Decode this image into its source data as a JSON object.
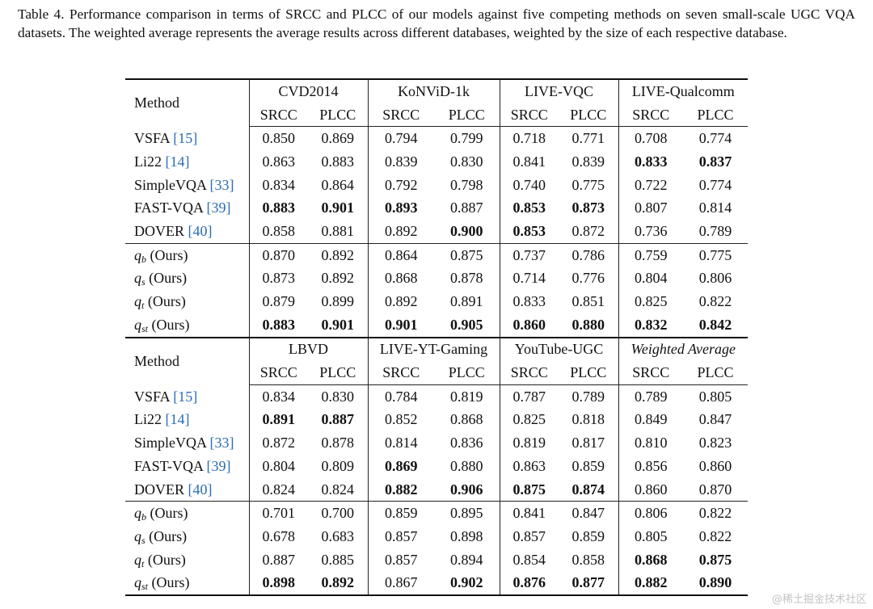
{
  "caption": "Table 4. Performance comparison in terms of SRCC and PLCC of our models against five competing methods on seven small-scale UGC VQA datasets. The weighted average represents the average results across different databases, weighted by the size of each respective database.",
  "metrics": [
    "SRCC",
    "PLCC"
  ],
  "blocks": [
    {
      "method_header": "Method",
      "datasets": [
        "CVD2014",
        "KoNViD-1k",
        "LIVE-VQC",
        "LIVE-Qualcomm"
      ],
      "italic_datasets": [],
      "groups": [
        [
          {
            "method": "VSFA",
            "ref": "[15]",
            "values": [
              "0.850",
              "0.869",
              "0.794",
              "0.799",
              "0.718",
              "0.771",
              "0.708",
              "0.774"
            ],
            "bold": []
          },
          {
            "method": "Li22",
            "ref": "[14]",
            "values": [
              "0.863",
              "0.883",
              "0.839",
              "0.830",
              "0.841",
              "0.839",
              "0.833",
              "0.837"
            ],
            "bold": [
              6,
              7
            ]
          },
          {
            "method": "SimpleVQA",
            "ref": "[33]",
            "values": [
              "0.834",
              "0.864",
              "0.792",
              "0.798",
              "0.740",
              "0.775",
              "0.722",
              "0.774"
            ],
            "bold": []
          },
          {
            "method": "FAST-VQA",
            "ref": "[39]",
            "values": [
              "0.883",
              "0.901",
              "0.893",
              "0.887",
              "0.853",
              "0.873",
              "0.807",
              "0.814"
            ],
            "bold": [
              0,
              1,
              2,
              4,
              5
            ]
          },
          {
            "method": "DOVER",
            "ref": "[40]",
            "values": [
              "0.858",
              "0.881",
              "0.892",
              "0.900",
              "0.853",
              "0.872",
              "0.736",
              "0.789"
            ],
            "bold": [
              3,
              4
            ]
          }
        ],
        [
          {
            "symbol": "q",
            "subscript": "b",
            "note": "(Ours)",
            "values": [
              "0.870",
              "0.892",
              "0.864",
              "0.875",
              "0.737",
              "0.786",
              "0.759",
              "0.775"
            ],
            "bold": []
          },
          {
            "symbol": "q",
            "subscript": "s",
            "note": "(Ours)",
            "values": [
              "0.873",
              "0.892",
              "0.868",
              "0.878",
              "0.714",
              "0.776",
              "0.804",
              "0.806"
            ],
            "bold": []
          },
          {
            "symbol": "q",
            "subscript": "t",
            "note": "(Ours)",
            "values": [
              "0.879",
              "0.899",
              "0.892",
              "0.891",
              "0.833",
              "0.851",
              "0.825",
              "0.822"
            ],
            "bold": []
          },
          {
            "symbol": "q",
            "subscript": "st",
            "note": "(Ours)",
            "values": [
              "0.883",
              "0.901",
              "0.901",
              "0.905",
              "0.860",
              "0.880",
              "0.832",
              "0.842"
            ],
            "bold": [
              0,
              1,
              2,
              3,
              4,
              5,
              6,
              7
            ]
          }
        ]
      ]
    },
    {
      "method_header": "Method",
      "datasets": [
        "LBVD",
        "LIVE-YT-Gaming",
        "YouTube-UGC",
        "Weighted Average"
      ],
      "italic_datasets": [
        3
      ],
      "groups": [
        [
          {
            "method": "VSFA",
            "ref": "[15]",
            "values": [
              "0.834",
              "0.830",
              "0.784",
              "0.819",
              "0.787",
              "0.789",
              "0.789",
              "0.805"
            ],
            "bold": []
          },
          {
            "method": "Li22",
            "ref": "[14]",
            "values": [
              "0.891",
              "0.887",
              "0.852",
              "0.868",
              "0.825",
              "0.818",
              "0.849",
              "0.847"
            ],
            "bold": [
              0,
              1
            ]
          },
          {
            "method": "SimpleVQA",
            "ref": "[33]",
            "values": [
              "0.872",
              "0.878",
              "0.814",
              "0.836",
              "0.819",
              "0.817",
              "0.810",
              "0.823"
            ],
            "bold": []
          },
          {
            "method": "FAST-VQA",
            "ref": "[39]",
            "values": [
              "0.804",
              "0.809",
              "0.869",
              "0.880",
              "0.863",
              "0.859",
              "0.856",
              "0.860"
            ],
            "bold": [
              2
            ]
          },
          {
            "method": "DOVER",
            "ref": "[40]",
            "values": [
              "0.824",
              "0.824",
              "0.882",
              "0.906",
              "0.875",
              "0.874",
              "0.860",
              "0.870"
            ],
            "bold": [
              2,
              3,
              4,
              5
            ]
          }
        ],
        [
          {
            "symbol": "q",
            "subscript": "b",
            "note": "(Ours)",
            "values": [
              "0.701",
              "0.700",
              "0.859",
              "0.895",
              "0.841",
              "0.847",
              "0.806",
              "0.822"
            ],
            "bold": []
          },
          {
            "symbol": "q",
            "subscript": "s",
            "note": "(Ours)",
            "values": [
              "0.678",
              "0.683",
              "0.857",
              "0.898",
              "0.857",
              "0.859",
              "0.805",
              "0.822"
            ],
            "bold": []
          },
          {
            "symbol": "q",
            "subscript": "t",
            "note": "(Ours)",
            "values": [
              "0.887",
              "0.885",
              "0.857",
              "0.894",
              "0.854",
              "0.858",
              "0.868",
              "0.875"
            ],
            "bold": [
              6,
              7
            ]
          },
          {
            "symbol": "q",
            "subscript": "st",
            "note": "(Ours)",
            "values": [
              "0.898",
              "0.892",
              "0.867",
              "0.902",
              "0.876",
              "0.877",
              "0.882",
              "0.890"
            ],
            "bold": [
              0,
              1,
              3,
              4,
              5,
              6,
              7
            ]
          }
        ]
      ]
    }
  ],
  "watermark": "@稀土掘金技术社区"
}
